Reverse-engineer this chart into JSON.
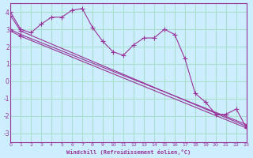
{
  "bg_color": "#cceeff",
  "grid_color": "#aaddcc",
  "line_color": "#993399",
  "line_color2": "#aa33aa",
  "xlabel": "Windchill (Refroidissement éolien,°C)",
  "ylabel": "",
  "xlim": [
    0,
    23
  ],
  "ylim": [
    -3.5,
    4.5
  ],
  "yticks": [
    -3,
    -2,
    -1,
    0,
    1,
    2,
    3,
    4
  ],
  "xticks": [
    0,
    1,
    2,
    3,
    4,
    5,
    6,
    7,
    8,
    9,
    10,
    11,
    12,
    13,
    14,
    15,
    16,
    17,
    18,
    19,
    20,
    21,
    22,
    23
  ],
  "series1_x": [
    0,
    1,
    2,
    3,
    4,
    5,
    6,
    7,
    8,
    9,
    10,
    11,
    12,
    13,
    14,
    15,
    16,
    17,
    18,
    19,
    20,
    21,
    22,
    23
  ],
  "series1_y": [
    4.0,
    3.0,
    2.8,
    3.3,
    3.7,
    3.7,
    4.1,
    4.2,
    3.1,
    2.3,
    1.7,
    1.5,
    2.1,
    2.5,
    2.5,
    3.0,
    2.7,
    1.3,
    -0.7,
    -1.2,
    -1.9,
    -1.9,
    -1.6,
    -2.7
  ],
  "series2_x": [
    0,
    1,
    23
  ],
  "series2_y": [
    3.8,
    2.9,
    -2.6
  ],
  "series3_x": [
    0,
    1,
    23
  ],
  "series3_y": [
    3.0,
    2.7,
    -2.5
  ],
  "series4_x": [
    0,
    1,
    23
  ],
  "series4_y": [
    2.9,
    2.6,
    -2.7
  ]
}
